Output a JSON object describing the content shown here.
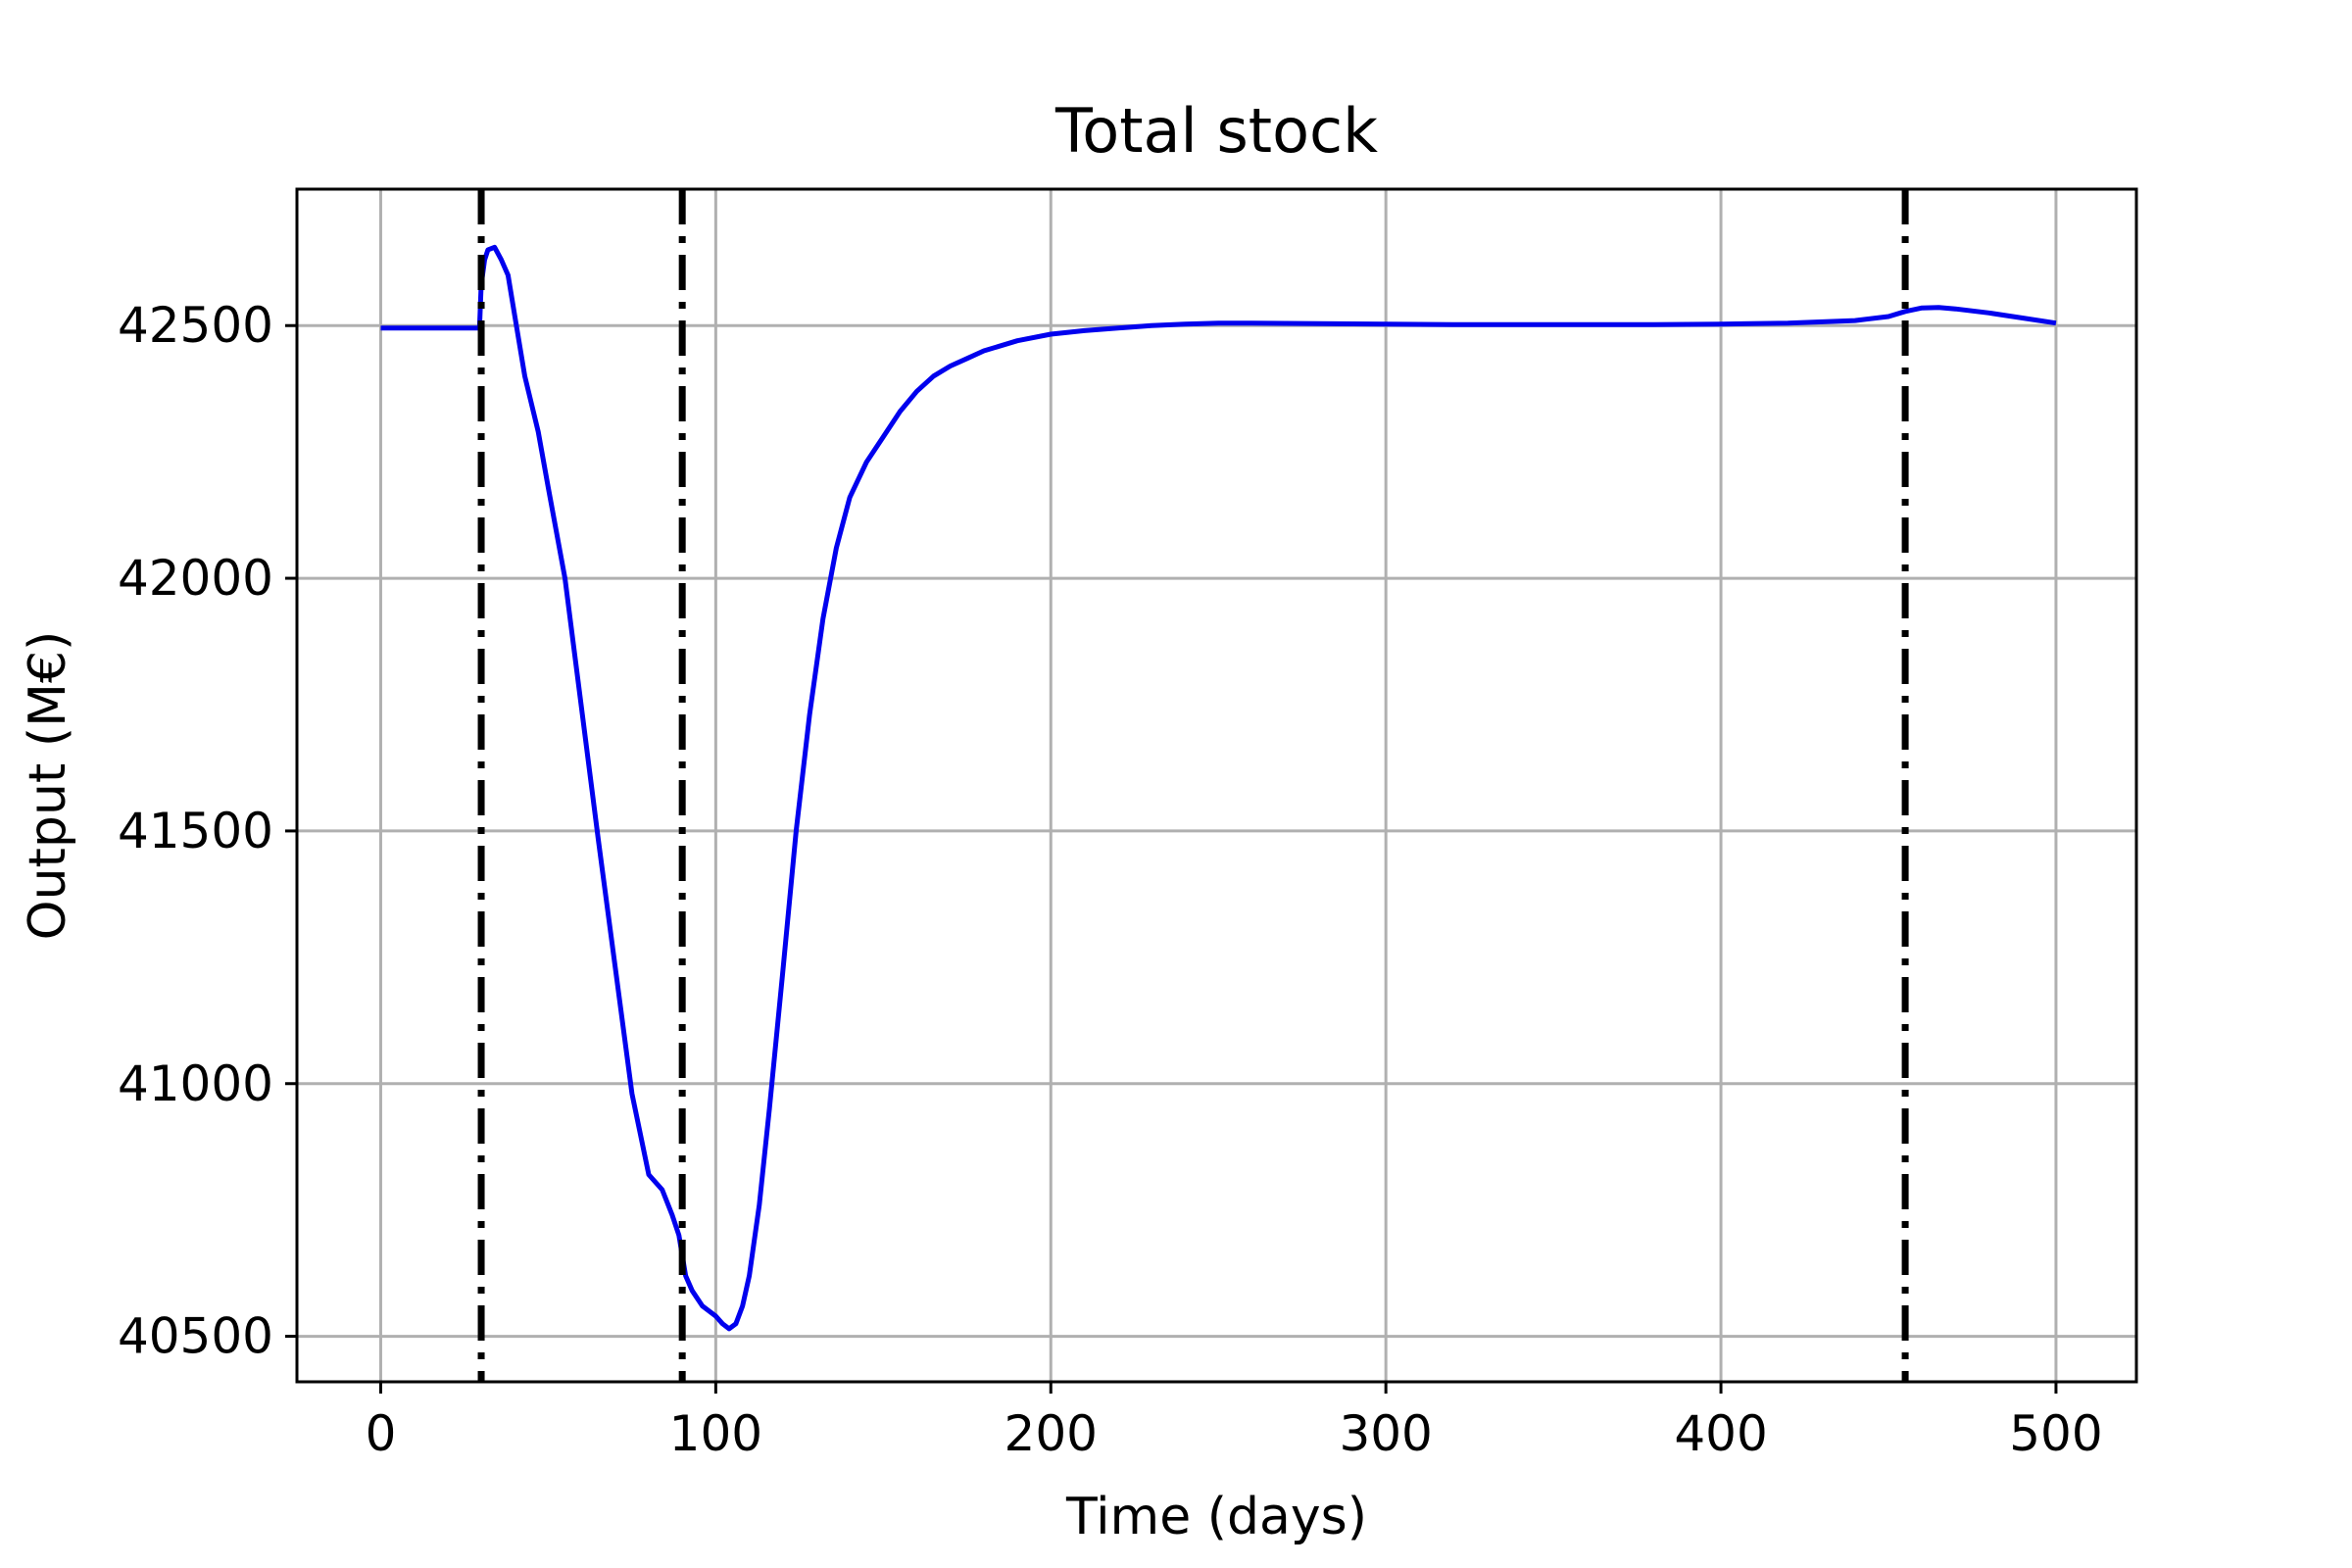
{
  "chart_data": {
    "type": "line",
    "title": "Total stock",
    "xlabel": "Time (days)",
    "ylabel": "Output (M€)",
    "xlim": [
      -25,
      524
    ],
    "ylim": [
      40410,
      42770
    ],
    "xticks": [
      0,
      100,
      200,
      300,
      400,
      500
    ],
    "yticks": [
      40500,
      41000,
      41500,
      42000,
      42500
    ],
    "grid": true,
    "colors": {
      "line": "#0000ee",
      "vline": "#000000",
      "grid": "#b0b0b0"
    },
    "vlines": [
      30,
      90,
      455
    ],
    "series": [
      {
        "x": [
          0,
          10,
          20,
          29.5,
          30,
          31,
          32,
          34,
          36,
          38,
          40,
          43,
          47,
          50,
          55,
          60,
          65,
          70,
          75,
          80,
          84,
          87,
          89,
          90,
          91,
          93,
          96,
          100,
          102,
          104,
          106,
          108,
          110,
          113,
          116,
          120,
          124,
          128,
          132,
          136,
          140,
          145,
          150,
          155,
          160,
          165,
          170,
          175,
          180,
          190,
          200,
          210,
          220,
          230,
          240,
          250,
          260,
          280,
          300,
          320,
          350,
          380,
          400,
          420,
          440,
          450,
          455,
          460,
          465,
          470,
          480,
          490,
          500
        ],
        "y": [
          42495,
          42495,
          42495,
          42495,
          42580,
          42630,
          42650,
          42655,
          42630,
          42600,
          42520,
          42400,
          42290,
          42180,
          42000,
          41740,
          41480,
          41230,
          40980,
          40820,
          40790,
          40740,
          40700,
          40660,
          40620,
          40590,
          40560,
          40540,
          40525,
          40515,
          40525,
          40560,
          40620,
          40760,
          40950,
          41220,
          41500,
          41730,
          41920,
          42060,
          42160,
          42230,
          42280,
          42330,
          42370,
          42400,
          42420,
          42435,
          42450,
          42470,
          42483,
          42490,
          42495,
          42500,
          42503,
          42505,
          42505,
          42504,
          42503,
          42502,
          42502,
          42502,
          42503,
          42505,
          42510,
          42518,
          42528,
          42535,
          42536,
          42533,
          42525,
          42515,
          42505
        ]
      }
    ]
  }
}
